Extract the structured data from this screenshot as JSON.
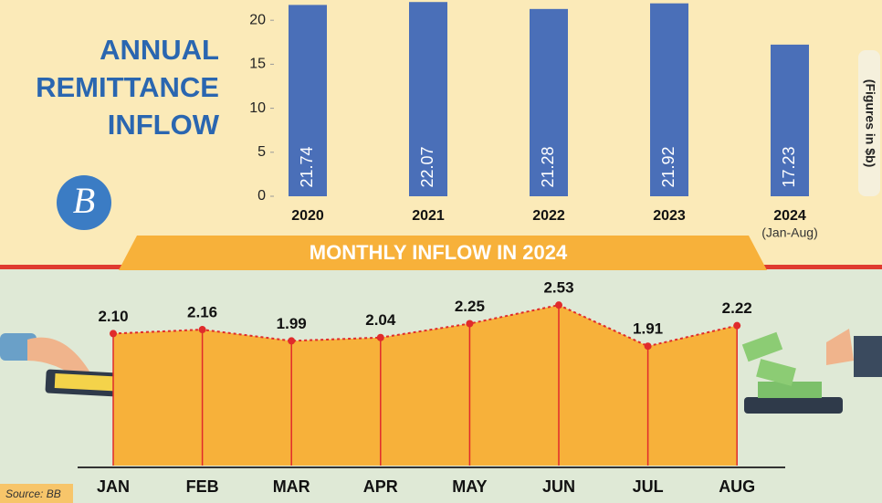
{
  "chart_data": [
    {
      "type": "bar",
      "title": "ANNUAL REMITTANCE INFLOW",
      "y_label": "(Figures in $b)",
      "logo": "B",
      "categories": [
        "2020",
        "2021",
        "2022",
        "2023",
        "2024"
      ],
      "category_note": "(Jan-Aug)",
      "values": [
        21.74,
        22.07,
        21.28,
        21.92,
        17.23
      ],
      "color": "#4a6fb8",
      "ylim": [
        0,
        22.3
      ],
      "yticks": [
        0,
        5,
        10,
        15,
        20
      ]
    },
    {
      "type": "area",
      "title": "MONTHLY INFLOW IN 2024",
      "categories": [
        "JAN",
        "FEB",
        "MAR",
        "APR",
        "MAY",
        "JUN",
        "JUL",
        "AUG"
      ],
      "values": [
        2.1,
        2.16,
        1.99,
        2.04,
        2.25,
        2.53,
        1.91,
        2.22
      ],
      "value_labels": [
        "2.10",
        "2.16",
        "1.99",
        "2.04",
        "2.25",
        "2.53",
        "1.91",
        "2.22"
      ],
      "color": "#f7b13a",
      "line_color": "#e02b2b",
      "ylim": [
        0,
        3
      ],
      "source": "Source: BB"
    }
  ]
}
